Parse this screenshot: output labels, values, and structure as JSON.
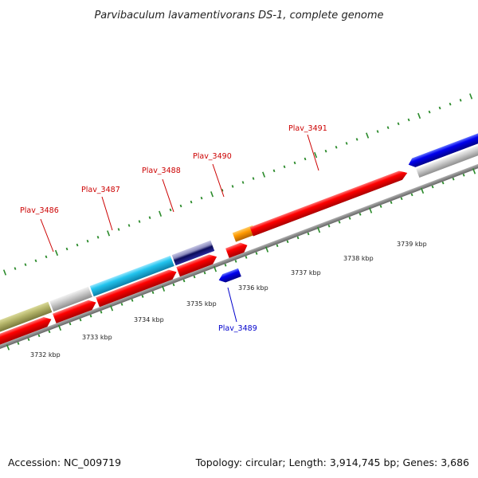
{
  "title": "Parvibaculum lavamentivorans DS-1, complete genome",
  "footer": {
    "accession": "Accession: NC_009719",
    "topology": "Topology: circular; Length: 3,914,745 bp; Genes: 3,686"
  },
  "scale_labels": [
    "3732 kbp",
    "3733 kbp",
    "3734 kbp",
    "3735 kbp",
    "3736 kbp",
    "3737 kbp",
    "3738 kbp",
    "3739 kbp"
  ],
  "gene_labels": {
    "plav_3486": "Plav_3486",
    "plav_3487": "Plav_3487",
    "plav_3488": "Plav_3488",
    "plav_3489": "Plav_3489",
    "plav_3490": "Plav_3490",
    "plav_3491": "Plav_3491"
  },
  "colors": {
    "forward_cds": "#ff0000",
    "reverse_cds": "#0000ff",
    "label_forward": "#cc0000",
    "label_reverse": "#0000cc",
    "backbone": "#888888",
    "tick": "#2a8a2a",
    "olive": "#b5b56a",
    "gray": "#cccccc",
    "cyan": "#22c4ee",
    "navy": "#1a1a8c",
    "orange": "#ff9900"
  }
}
